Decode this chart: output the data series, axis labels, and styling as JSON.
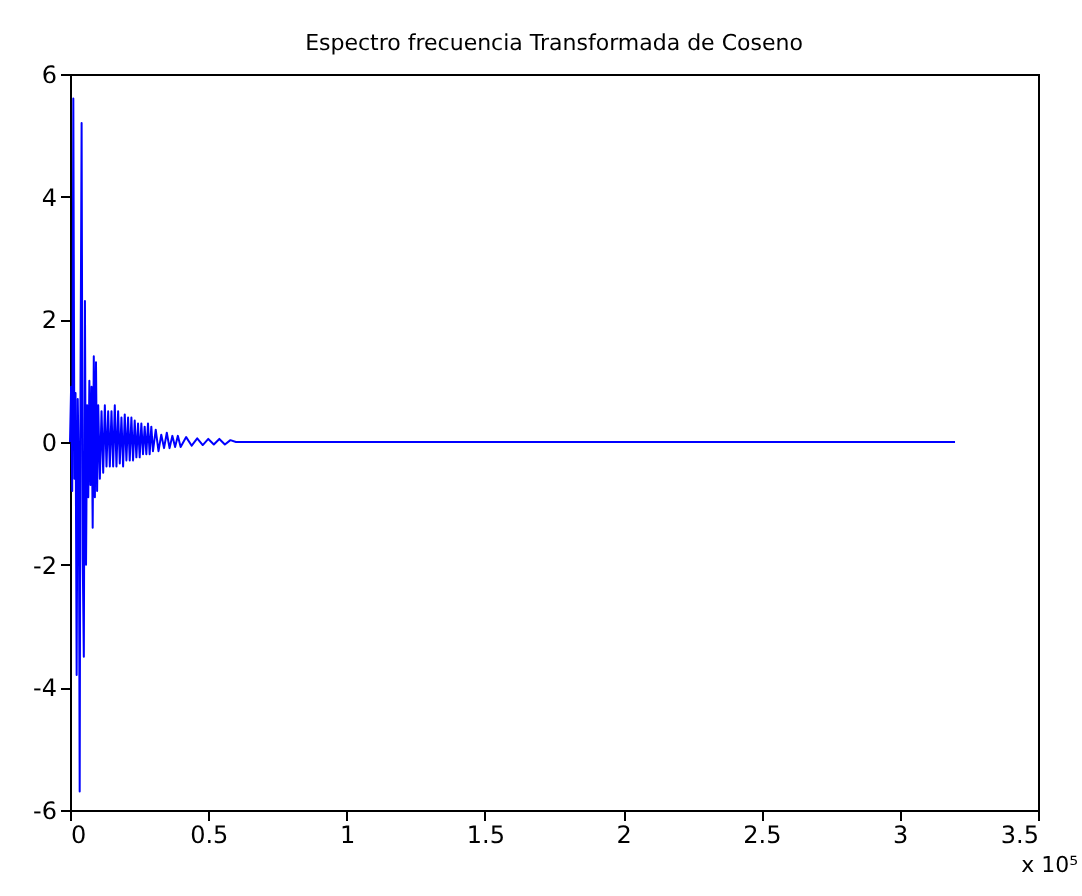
{
  "chart_data": {
    "type": "line",
    "title": "Espectro frecuencia Transformada de Coseno",
    "x": [
      0,
      0.004,
      0.008,
      0.012,
      0.016,
      0.02,
      0.024,
      0.028,
      0.032,
      0.035,
      0.038,
      0.042,
      0.046,
      0.05,
      0.054,
      0.058,
      0.062,
      0.066,
      0.07,
      0.074,
      0.078,
      0.082,
      0.086,
      0.09,
      0.094,
      0.098,
      0.102,
      0.108,
      0.114,
      0.12,
      0.126,
      0.132,
      0.138,
      0.144,
      0.15,
      0.156,
      0.162,
      0.168,
      0.174,
      0.18,
      0.186,
      0.192,
      0.198,
      0.204,
      0.21,
      0.216,
      0.222,
      0.228,
      0.234,
      0.24,
      0.246,
      0.252,
      0.258,
      0.264,
      0.27,
      0.276,
      0.282,
      0.288,
      0.294,
      0.3,
      0.31,
      0.32,
      0.33,
      0.34,
      0.35,
      0.36,
      0.37,
      0.38,
      0.39,
      0.4,
      0.42,
      0.44,
      0.46,
      0.48,
      0.5,
      0.52,
      0.54,
      0.56,
      0.58,
      0.6,
      3.2
    ],
    "series": [
      {
        "color": "#0000ff",
        "values": [
          0,
          0.9,
          -0.8,
          5.6,
          -0.6,
          0.8,
          -3.8,
          0.7,
          -0.5,
          -5.7,
          1.0,
          5.2,
          -1.9,
          -3.5,
          2.3,
          -2.0,
          0.6,
          -0.9,
          1.0,
          -0.7,
          0.9,
          -1.4,
          1.4,
          -0.9,
          1.3,
          -0.8,
          0.6,
          -0.6,
          0.5,
          -0.5,
          0.6,
          -0.4,
          0.5,
          -0.4,
          0.5,
          -0.4,
          0.6,
          -0.4,
          0.5,
          -0.35,
          0.4,
          -0.4,
          0.45,
          -0.3,
          0.4,
          -0.3,
          0.4,
          -0.3,
          0.35,
          -0.25,
          0.3,
          -0.25,
          0.3,
          -0.2,
          0.25,
          -0.2,
          0.3,
          -0.2,
          0.25,
          -0.15,
          0.2,
          -0.15,
          0.12,
          -0.1,
          0.15,
          -0.1,
          0.1,
          -0.08,
          0.1,
          -0.08,
          0.08,
          -0.06,
          0.06,
          -0.05,
          0.05,
          -0.04,
          0.05,
          -0.04,
          0.03,
          0,
          0
        ]
      }
    ],
    "xlim": [
      0,
      3.5
    ],
    "xticks": [
      0,
      0.5,
      1,
      1.5,
      2,
      2.5,
      3,
      3.5
    ],
    "ylim": [
      -6,
      6
    ],
    "yticks": [
      -6,
      -4,
      -2,
      0,
      2,
      4,
      6
    ],
    "grid": false,
    "marker": "none",
    "line_style": "solid",
    "annotations": [
      "x 10⁵"
    ]
  }
}
